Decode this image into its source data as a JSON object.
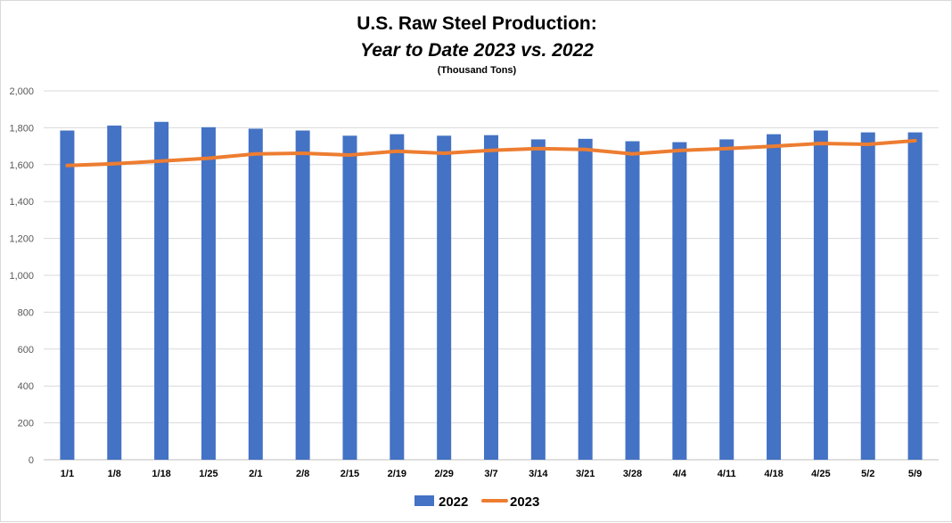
{
  "chart_data": {
    "type": "bar",
    "title": "U.S. Raw Steel Production:",
    "subtitle": "Year to Date 2023 vs. 2022",
    "unit_note": "(Thousand Tons)",
    "xlabel": "",
    "ylabel": "",
    "ylim": [
      0,
      2000
    ],
    "yticks": [
      0,
      200,
      400,
      600,
      800,
      1000,
      1200,
      1400,
      1600,
      1800,
      2000
    ],
    "ytick_labels": [
      "0",
      "200",
      "400",
      "600",
      "800",
      "1,000",
      "1,200",
      "1,400",
      "1,600",
      "1,800",
      "2,000"
    ],
    "grid": true,
    "legend_position": "bottom",
    "categories": [
      "1/1",
      "1/8",
      "1/18",
      "1/25",
      "2/1",
      "2/8",
      "2/15",
      "2/19",
      "2/29",
      "3/7",
      "3/14",
      "3/21",
      "3/28",
      "4/4",
      "4/11",
      "4/18",
      "4/25",
      "5/2",
      "5/9"
    ],
    "series": [
      {
        "name": "2022",
        "type": "bar",
        "color": "#4472C4",
        "values": [
          1785,
          1812,
          1832,
          1803,
          1795,
          1785,
          1757,
          1765,
          1757,
          1760,
          1737,
          1740,
          1727,
          1722,
          1737,
          1765,
          1785,
          1775,
          1775
        ]
      },
      {
        "name": "2023",
        "type": "line",
        "color": "#ED7D31",
        "values": [
          1595,
          1605,
          1620,
          1635,
          1658,
          1662,
          1652,
          1673,
          1662,
          1678,
          1687,
          1682,
          1658,
          1677,
          1687,
          1700,
          1715,
          1710,
          1730
        ]
      }
    ]
  }
}
